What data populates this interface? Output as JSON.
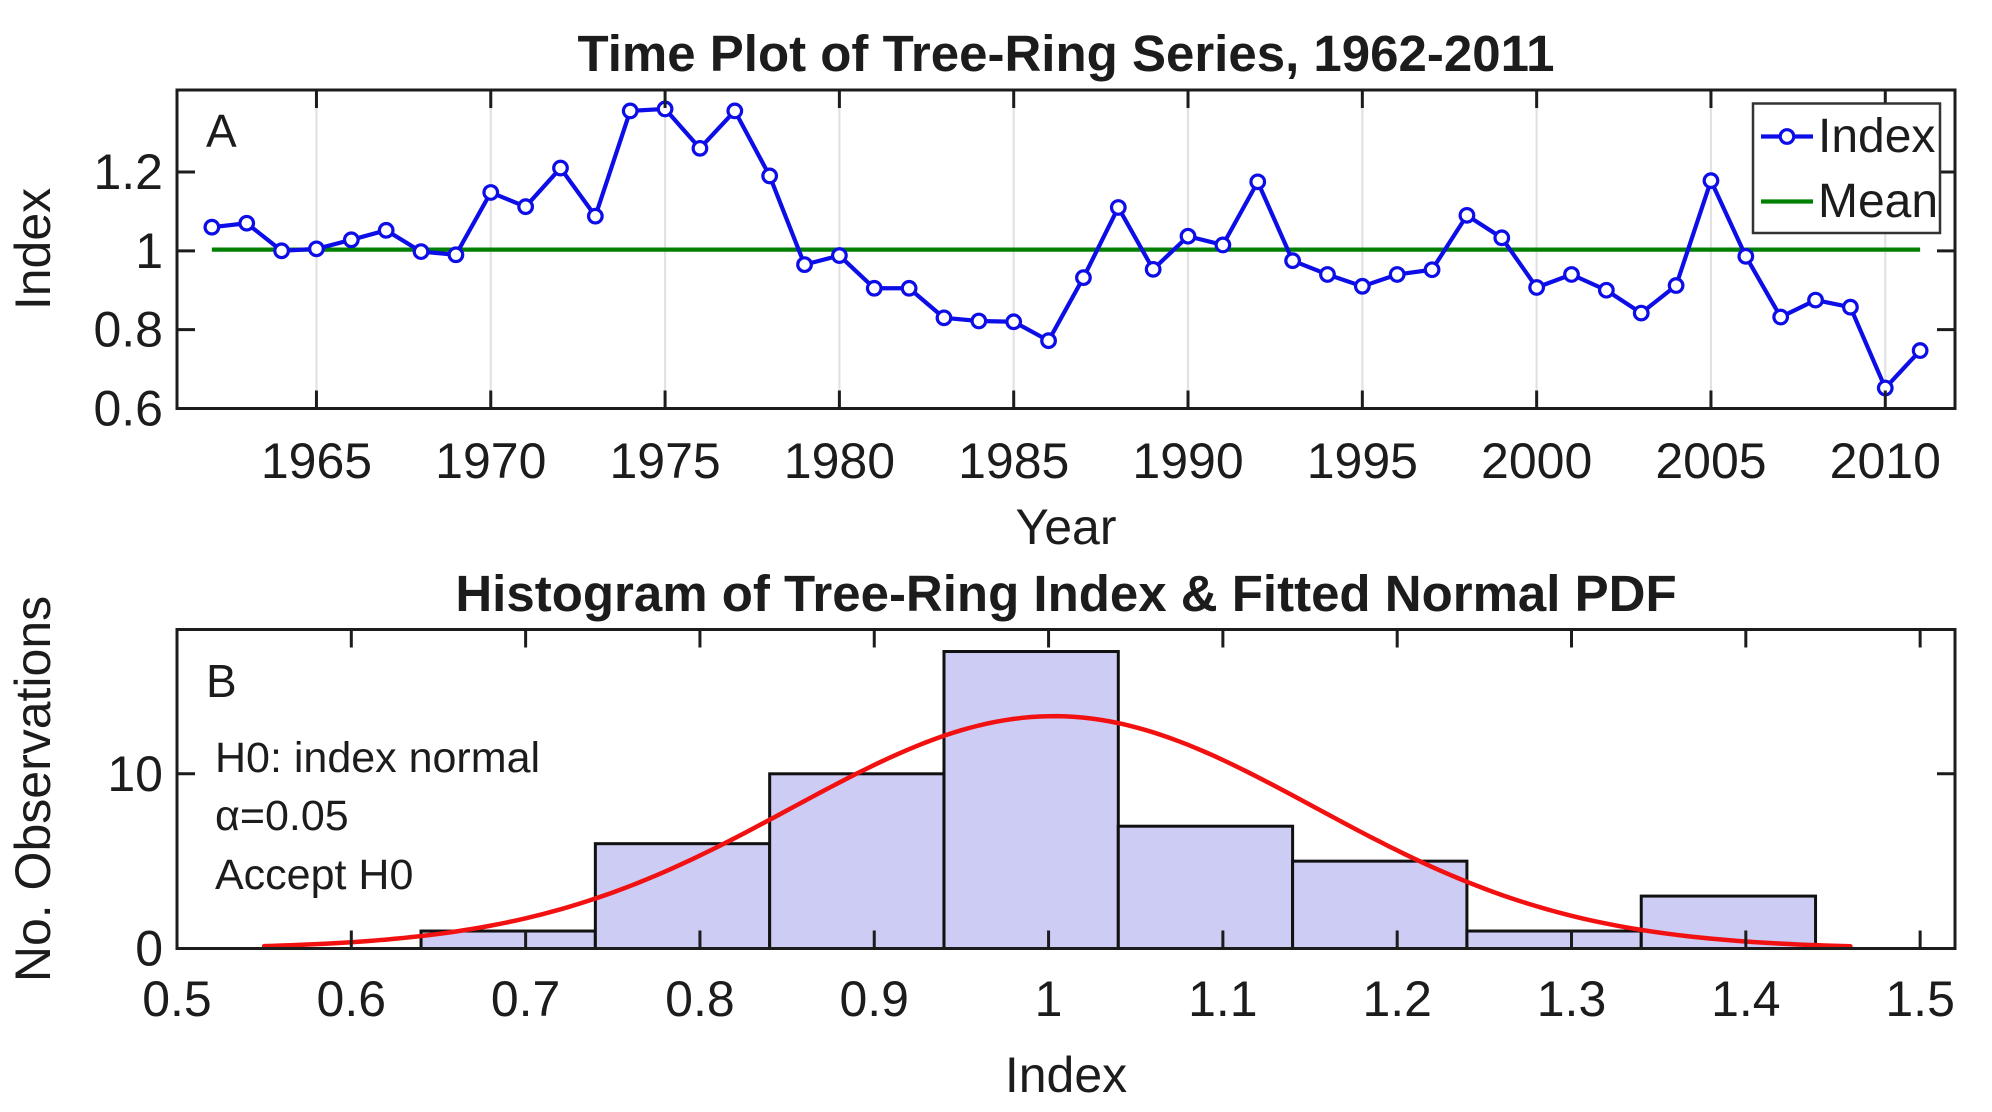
{
  "figure": {
    "background": "#ffffff",
    "axis_color": "#1c1c1c",
    "text_color": "#1c1c1c",
    "grid_color": "#e2e2e2"
  },
  "chart_data": [
    {
      "id": "panel_a",
      "type": "line",
      "panel_letter": "A",
      "title": "Time Plot of Tree-Ring Series, 1962-2011",
      "xlabel": "Year",
      "ylabel": "Index",
      "xlim": [
        1961,
        2012
      ],
      "ylim": [
        0.6,
        1.408
      ],
      "xticks": [
        1965,
        1970,
        1975,
        1980,
        1985,
        1990,
        1995,
        2000,
        2005,
        2010
      ],
      "xtick_labels": [
        "1965",
        "1970",
        "1975",
        "1980",
        "1985",
        "1990",
        "1995",
        "2000",
        "2005",
        "2010"
      ],
      "yticks": [
        0.6,
        0.8,
        1.0,
        1.2
      ],
      "ytick_labels": [
        "0.6",
        "0.8",
        "1",
        "1.2"
      ],
      "grid": "vertical-only",
      "legend": {
        "position": "top-right",
        "items": [
          "Index",
          "Mean"
        ]
      },
      "x": [
        1962,
        1963,
        1964,
        1965,
        1966,
        1967,
        1968,
        1969,
        1970,
        1971,
        1972,
        1973,
        1974,
        1975,
        1976,
        1977,
        1978,
        1979,
        1980,
        1981,
        1982,
        1983,
        1984,
        1985,
        1986,
        1987,
        1988,
        1989,
        1990,
        1991,
        1992,
        1993,
        1994,
        1995,
        1996,
        1997,
        1998,
        1999,
        2000,
        2001,
        2002,
        2003,
        2004,
        2005,
        2006,
        2007,
        2008,
        2009,
        2010,
        2011
      ],
      "series": [
        {
          "name": "Index",
          "style": "line-with-circle-markers",
          "color": "#0d0de8",
          "values": [
            1.06,
            1.07,
            1.0,
            1.005,
            1.028,
            1.052,
            0.998,
            0.99,
            1.148,
            1.112,
            1.21,
            1.088,
            1.355,
            1.36,
            1.26,
            1.355,
            1.19,
            0.965,
            0.988,
            0.905,
            0.905,
            0.83,
            0.822,
            0.82,
            0.772,
            0.932,
            1.11,
            0.953,
            1.037,
            1.015,
            1.175,
            0.975,
            0.94,
            0.91,
            0.94,
            0.952,
            1.09,
            1.033,
            0.907,
            0.94,
            0.9,
            0.842,
            0.912,
            1.178,
            0.986,
            0.832,
            0.875,
            0.857,
            0.652,
            0.747
          ]
        },
        {
          "name": "Mean",
          "style": "horizontal-line",
          "color": "#008000",
          "value": 1.003,
          "x_span": [
            1962,
            2011
          ]
        }
      ]
    },
    {
      "id": "panel_b",
      "type": "bar",
      "panel_letter": "B",
      "title": "Histogram of Tree-Ring Index & Fitted Normal PDF",
      "xlabel": "Index",
      "ylabel": "No. Observations",
      "xlim": [
        0.5,
        1.52
      ],
      "ylim": [
        0,
        18.26
      ],
      "xticks": [
        0.5,
        0.6,
        0.7,
        0.8,
        0.9,
        1.0,
        1.1,
        1.2,
        1.3,
        1.4,
        1.5
      ],
      "xtick_labels": [
        "0.5",
        "0.6",
        "0.7",
        "0.8",
        "0.9",
        "1",
        "1.1",
        "1.2",
        "1.3",
        "1.4",
        "1.5"
      ],
      "yticks": [
        0,
        10
      ],
      "ytick_labels": [
        "0",
        "10"
      ],
      "grid": "none",
      "bin_edges": [
        0.64,
        0.74,
        0.84,
        0.94,
        1.04,
        1.14,
        1.24,
        1.34,
        1.44
      ],
      "counts": [
        1,
        6,
        10,
        17,
        7,
        5,
        1,
        3
      ],
      "bar_fill": "#ccccf4",
      "bar_edge": "#111111",
      "normal_fit": {
        "mean": 1.003,
        "sd": 0.15,
        "peak_height": 13.3,
        "color": "#f21111",
        "x_range": [
          0.55,
          1.46
        ]
      },
      "annotations": [
        "H0: index normal",
        "α=0.05",
        "Accept H0"
      ]
    }
  ]
}
